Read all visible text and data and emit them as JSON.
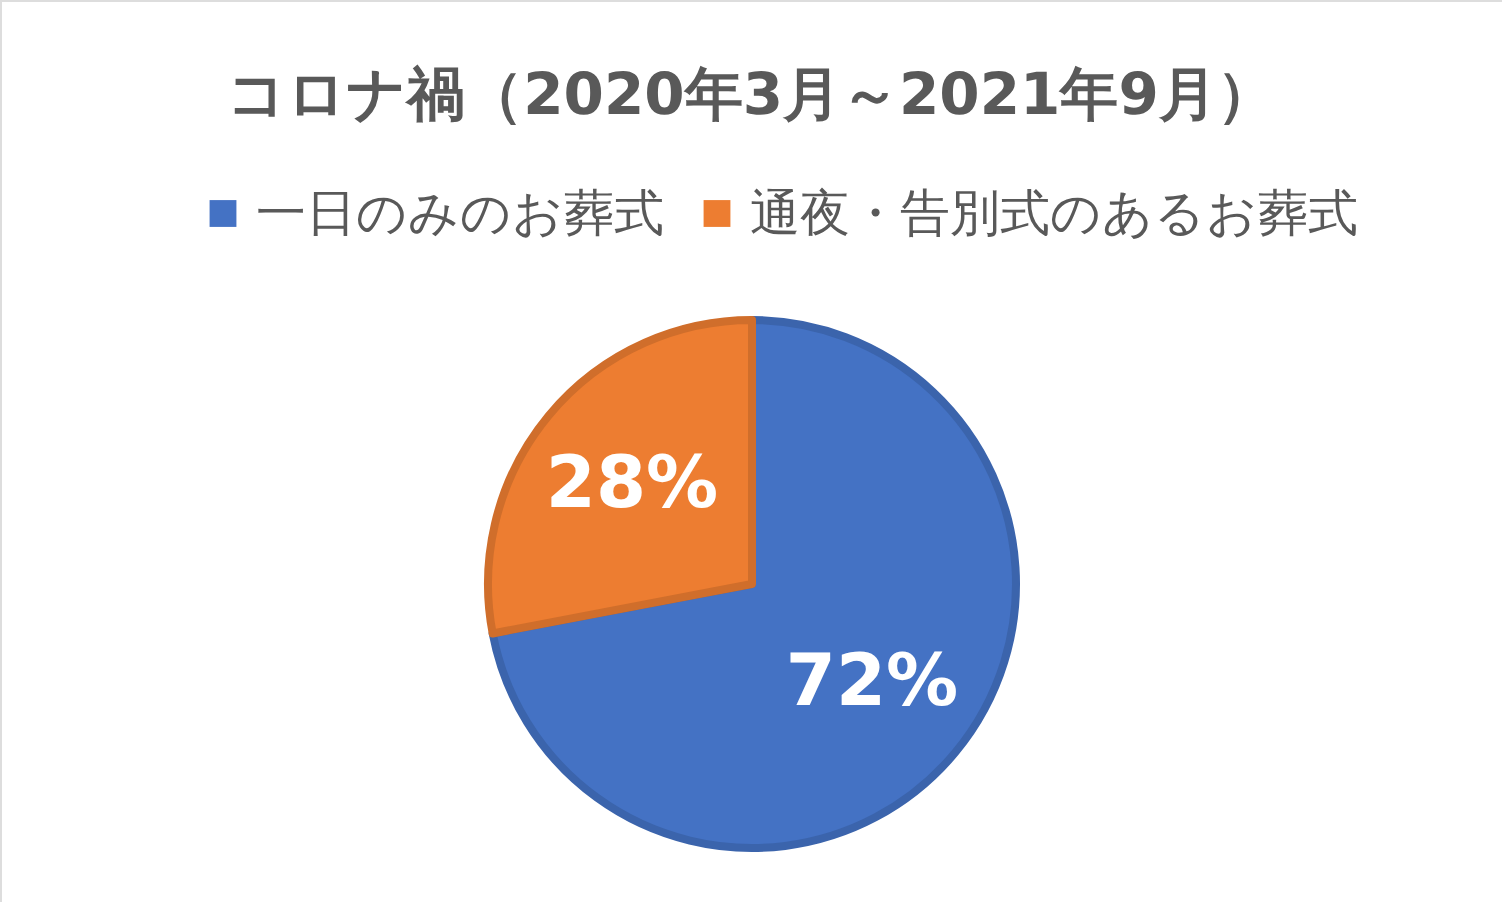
{
  "chart_data": {
    "type": "pie",
    "title": "コロナ禍（2020年3月～2021年9月）",
    "categories": [
      "一日のみのお葬式",
      "通夜・告別式のあるお葬式"
    ],
    "values": [
      72,
      28
    ],
    "colors": [
      "#4472c4",
      "#ed7d31"
    ],
    "value_labels": [
      "72%",
      "28%"
    ],
    "legend": "top"
  }
}
